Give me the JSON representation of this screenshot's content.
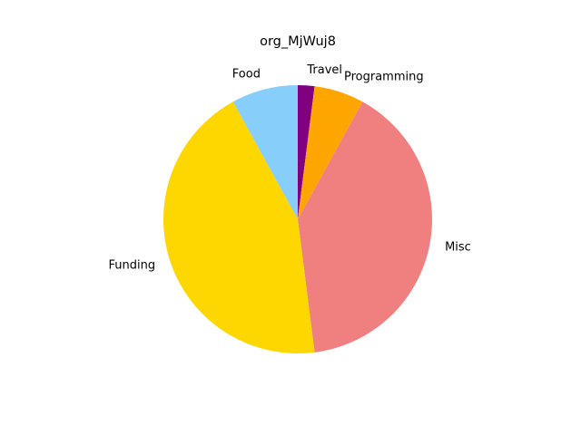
{
  "chart_data": {
    "type": "pie",
    "title": "org_MjWuj8",
    "start_angle_deg": 90,
    "direction": "clockwise",
    "slices": [
      {
        "label": "Travel",
        "value": 2.0,
        "color": "#800080"
      },
      {
        "label": "Programming",
        "value": 6.0,
        "color": "#FFA500"
      },
      {
        "label": "Misc",
        "value": 40.0,
        "color": "#F08080"
      },
      {
        "label": "Funding",
        "value": 44.0,
        "color": "#FFD700"
      },
      {
        "label": "Food",
        "value": 8.0,
        "color": "#87CEFA"
      }
    ]
  }
}
